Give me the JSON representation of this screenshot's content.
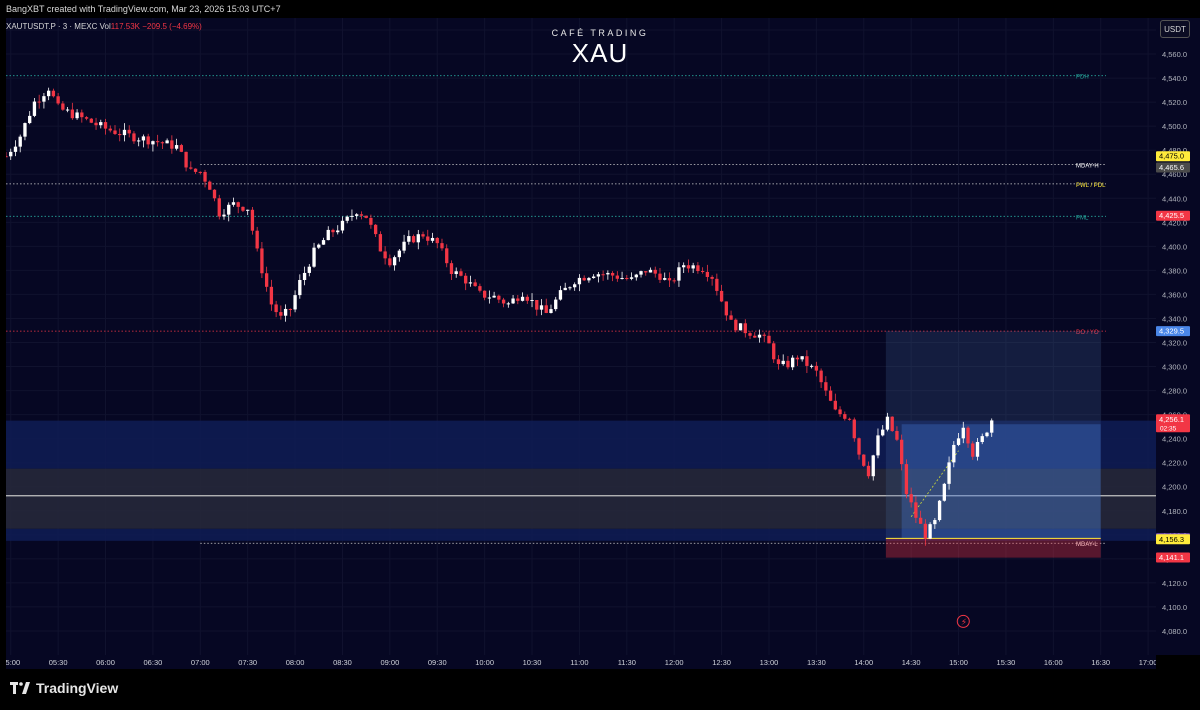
{
  "header": {
    "attribution": "BangXBT created with TradingView.com, Mar 23, 2026 15:03 UTC+7"
  },
  "symbol_info": {
    "symbol": "XAUTUSDT.P · 3 · MEXC",
    "vol_label": "Vol",
    "vol_value": "117.53K",
    "change": "−209.5 (−4.69%)"
  },
  "watermark": {
    "subtitle": "CAFÉ TRADING",
    "title": "XAU"
  },
  "currency_button": "USDT",
  "branding": "TradingView",
  "colors": {
    "background": "#060723",
    "up": "#ffffff",
    "down": "#f23645",
    "grid": "#10122e"
  },
  "chart_data": {
    "type": "candlestick",
    "ylim": [
      4060,
      4590
    ],
    "xlim": [
      "04:57",
      "17:05"
    ],
    "y_ticks": [
      4080,
      4100,
      4120,
      4140,
      4160,
      4180,
      4200,
      4220,
      4240,
      4260,
      4280,
      4300,
      4320,
      4340,
      4360,
      4380,
      4400,
      4420,
      4440,
      4460,
      4480,
      4500,
      4520,
      4540,
      4560,
      4580
    ],
    "y_tick_labels": [
      "4,080.0",
      "4,100.0",
      "4,120.0",
      "4,140.0",
      "4,160.0",
      "4,180.0",
      "4,200.0",
      "4,220.0",
      "4,240.0",
      "4,260.0",
      "4,280.0",
      "4,300.0",
      "4,320.0",
      "4,340.0",
      "4,360.0",
      "4,380.0",
      "4,400.0",
      "4,420.0",
      "4,440.0",
      "4,460.0",
      "4,480.0",
      "4,500.0",
      "4,520.0",
      "4,540.0",
      "4,560.0",
      "4,580.0"
    ],
    "x_ticks": [
      "05:00",
      "05:30",
      "06:00",
      "06:30",
      "07:00",
      "07:30",
      "08:00",
      "08:30",
      "09:00",
      "09:30",
      "10:00",
      "10:30",
      "11:00",
      "11:30",
      "12:00",
      "12:30",
      "13:00",
      "13:30",
      "14:00",
      "14:30",
      "15:00",
      "15:30",
      "16:00",
      "16:30",
      "17:00"
    ],
    "path": [
      [
        "04:57",
        4475
      ],
      [
        "05:06",
        4492
      ],
      [
        "05:15",
        4520
      ],
      [
        "05:24",
        4532
      ],
      [
        "05:30",
        4515
      ],
      [
        "05:39",
        4510
      ],
      [
        "05:48",
        4505
      ],
      [
        "06:00",
        4498
      ],
      [
        "06:15",
        4492
      ],
      [
        "06:30",
        4488
      ],
      [
        "06:45",
        4483
      ],
      [
        "06:54",
        4462
      ],
      [
        "07:00",
        4462
      ],
      [
        "07:06",
        4450
      ],
      [
        "07:12",
        4428
      ],
      [
        "07:21",
        4435
      ],
      [
        "07:30",
        4432
      ],
      [
        "07:36",
        4395
      ],
      [
        "07:45",
        4352
      ],
      [
        "07:51",
        4340
      ],
      [
        "07:57",
        4348
      ],
      [
        "08:03",
        4370
      ],
      [
        "08:12",
        4395
      ],
      [
        "08:21",
        4410
      ],
      [
        "08:30",
        4418
      ],
      [
        "08:39",
        4430
      ],
      [
        "08:45",
        4425
      ],
      [
        "08:54",
        4398
      ],
      [
        "09:00",
        4388
      ],
      [
        "09:12",
        4405
      ],
      [
        "09:21",
        4410
      ],
      [
        "09:30",
        4402
      ],
      [
        "09:39",
        4380
      ],
      [
        "09:48",
        4372
      ],
      [
        "09:57",
        4360
      ],
      [
        "10:06",
        4358
      ],
      [
        "10:15",
        4352
      ],
      [
        "10:24",
        4362
      ],
      [
        "10:33",
        4350
      ],
      [
        "10:39",
        4344
      ],
      [
        "10:48",
        4360
      ],
      [
        "10:57",
        4372
      ],
      [
        "11:09",
        4378
      ],
      [
        "11:21",
        4376
      ],
      [
        "11:33",
        4372
      ],
      [
        "11:42",
        4380
      ],
      [
        "11:51",
        4376
      ],
      [
        "11:57",
        4368
      ],
      [
        "12:06",
        4385
      ],
      [
        "12:18",
        4382
      ],
      [
        "12:24",
        4375
      ],
      [
        "12:30",
        4355
      ],
      [
        "12:36",
        4336
      ],
      [
        "12:45",
        4330
      ],
      [
        "12:54",
        4326
      ],
      [
        "13:00",
        4318
      ],
      [
        "13:06",
        4300
      ],
      [
        "13:12",
        4302
      ],
      [
        "13:18",
        4308
      ],
      [
        "13:24",
        4302
      ],
      [
        "13:30",
        4295
      ],
      [
        "13:36",
        4278
      ],
      [
        "13:42",
        4262
      ],
      [
        "13:51",
        4258
      ],
      [
        "13:57",
        4228
      ],
      [
        "14:03",
        4212
      ],
      [
        "14:09",
        4240
      ],
      [
        "14:15",
        4255
      ],
      [
        "14:21",
        4238
      ],
      [
        "14:27",
        4195
      ],
      [
        "14:33",
        4175
      ],
      [
        "14:39",
        4160
      ],
      [
        "14:45",
        4170
      ],
      [
        "14:51",
        4200
      ],
      [
        "14:57",
        4235
      ],
      [
        "15:03",
        4252
      ],
      [
        "15:09",
        4228
      ],
      [
        "15:15",
        4240
      ],
      [
        "15:21",
        4256
      ]
    ],
    "levels": [
      {
        "label": "PDH",
        "value": 4542,
        "color": "#26a69a",
        "style": "dotted",
        "label_color": "#26a69a"
      },
      {
        "label": "MDAY-H",
        "value": 4468,
        "color": "#cfcfcf",
        "style": "dotted",
        "label_color": "#ffffff"
      },
      {
        "label": "PWL / PDL",
        "value": 4452,
        "color": "#cfcfcf",
        "style": "dotted",
        "label_color": "#ffeb3b"
      },
      {
        "label": "PML",
        "value": 4425,
        "color": "#26a69a",
        "style": "dotted",
        "label_color": "#26a69a"
      },
      {
        "label": "DO / YO",
        "value": 4329.5,
        "color": "#f23645",
        "style": "dotted",
        "label_color": "#f23645"
      },
      {
        "label": "MDAY-L",
        "value": 4153,
        "color": "#cfcfcf",
        "style": "dotted",
        "label_color": "#ffffff"
      }
    ],
    "zones": [
      {
        "from": 4215,
        "to": 4255,
        "color": "#0f1c55",
        "opacity": 0.85
      },
      {
        "from": 4165,
        "to": 4215,
        "color": "#26283a",
        "opacity": 0.9
      },
      {
        "from": 4155,
        "to": 4165,
        "color": "#0f1c55",
        "opacity": 0.85
      },
      {
        "from": 4192,
        "to": 4193,
        "color": "#c8c8c8",
        "opacity": 1
      }
    ],
    "position_box": {
      "x_from": "14:14",
      "x_to": "16:30",
      "target": 4329.5,
      "entry": 4157,
      "stop": 4141,
      "x_inner_from": "14:24",
      "x_inner_to": "16:30",
      "inner_top": 4252
    },
    "price_tags": [
      {
        "value": 4475.0,
        "label": "4,475.0",
        "bg": "#ffeb3b",
        "fg": "#000000"
      },
      {
        "value": 4465.6,
        "label": "4,465.6",
        "bg": "#4a4a4a",
        "fg": "#ffffff"
      },
      {
        "value": 4425.5,
        "label": "4,425.5",
        "bg": "#f23645",
        "fg": "#ffffff"
      },
      {
        "value": 4329.5,
        "label": "4,329.5",
        "bg": "#4a86e8",
        "fg": "#ffffff"
      },
      {
        "value": 4256.1,
        "label": "4,256.1",
        "bg": "#f23645",
        "fg": "#ffffff",
        "sub": "02:35"
      },
      {
        "value": 4157.1,
        "label": "4,157.1",
        "bg": "#7e57c2",
        "fg": "#ffffff"
      },
      {
        "value": 4156.3,
        "label": "4,156.3",
        "bg": "#ffeb3b",
        "fg": "#000000"
      },
      {
        "value": 4141.1,
        "label": "4,141.1",
        "bg": "#f23645",
        "fg": "#ffffff"
      }
    ]
  }
}
